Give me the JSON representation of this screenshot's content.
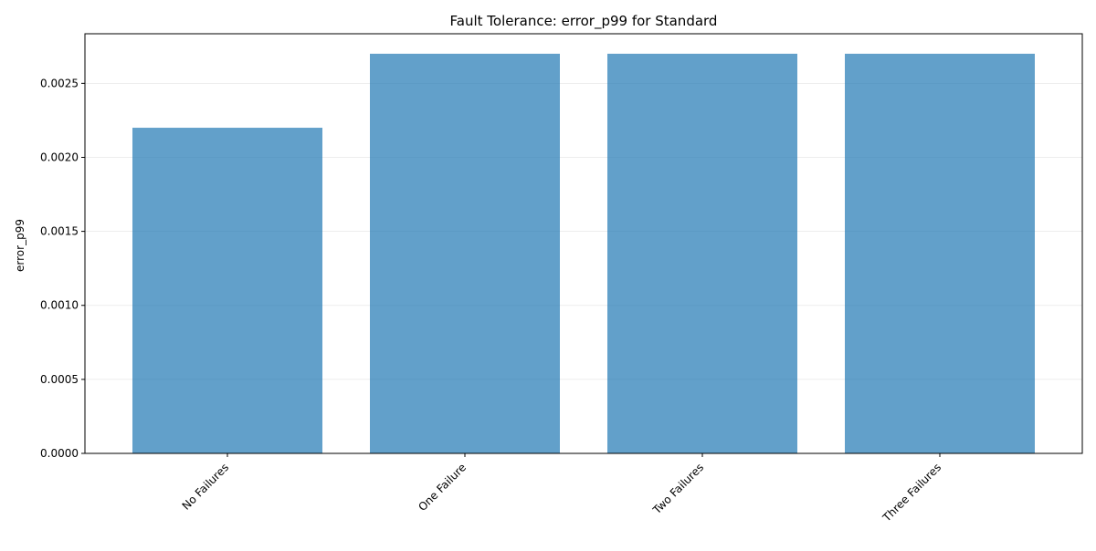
{
  "chart_data": {
    "type": "bar",
    "title": "Fault Tolerance: error_p99 for Standard",
    "xlabel": "",
    "ylabel": "error_p99",
    "categories": [
      "No Failures",
      "One Failure",
      "Two Failures",
      "Three Failures"
    ],
    "values": [
      0.0022,
      0.0027,
      0.0027,
      0.0027
    ],
    "ylim": [
      0,
      0.002835
    ],
    "yticks": [
      0.0,
      0.0005,
      0.001,
      0.0015,
      0.002,
      0.0025
    ],
    "ytick_labels": [
      "0.0000",
      "0.0005",
      "0.0010",
      "0.0015",
      "0.0020",
      "0.0025"
    ],
    "grid": "y",
    "bar_color": "#1f77b4",
    "bar_alpha": 0.7
  }
}
